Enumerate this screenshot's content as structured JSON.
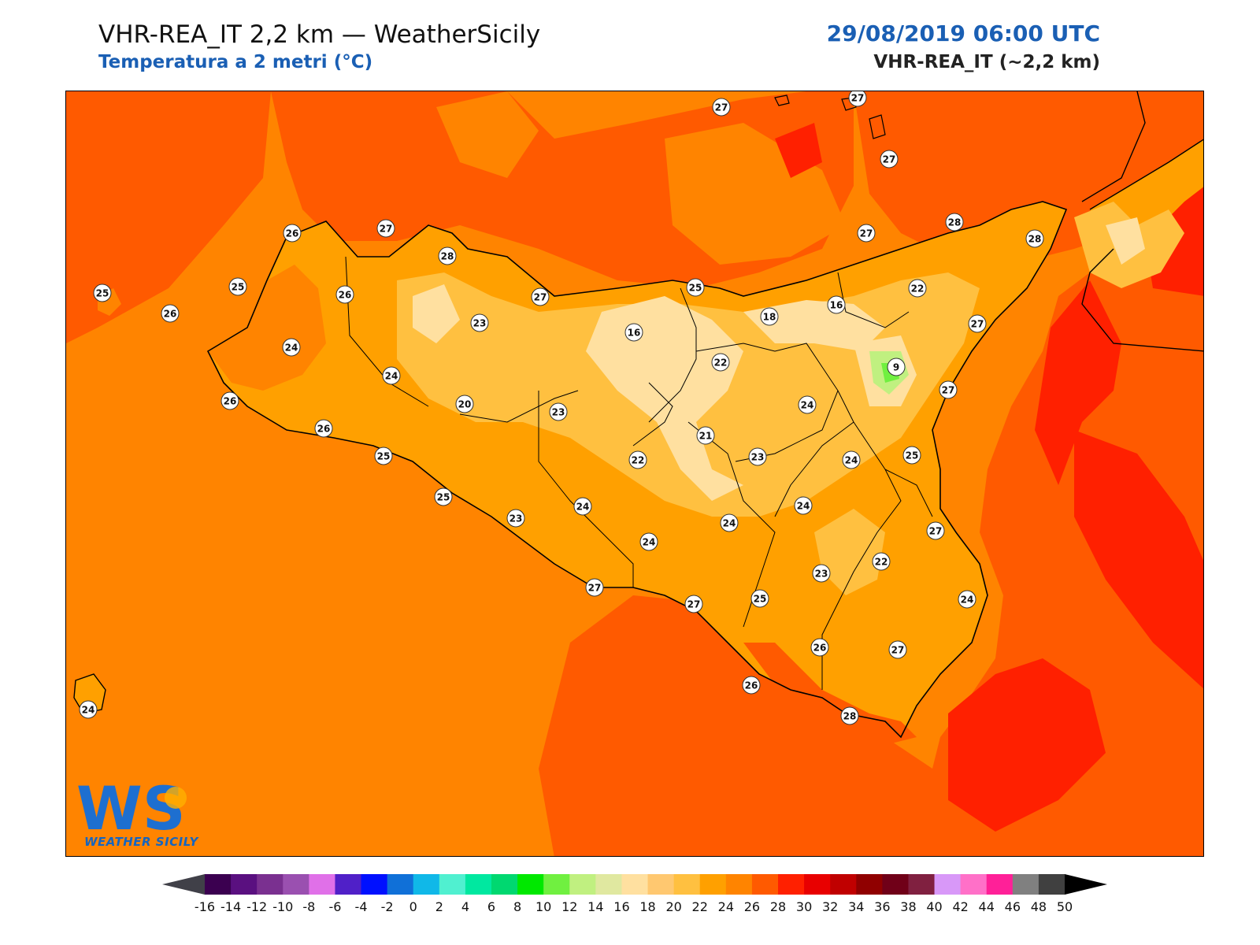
{
  "header": {
    "title": "VHR-REA_IT 2,2 km — WeatherSicily",
    "subtitle": "Temperatura a 2 metri (°C)",
    "datetime": "29/08/2019 06:00 UTC",
    "model": "VHR-REA_IT (~2,2 km)"
  },
  "logo": {
    "text": "WEATHER SICILY",
    "mark": "WS"
  },
  "stations": [
    {
      "label": "27"
    },
    {
      "label": "27"
    },
    {
      "label": "27"
    },
    {
      "label": "26"
    },
    {
      "label": "27"
    },
    {
      "label": "28"
    },
    {
      "label": "28"
    },
    {
      "label": "27"
    },
    {
      "label": "28"
    },
    {
      "label": "25"
    },
    {
      "label": "25"
    },
    {
      "label": "26"
    },
    {
      "label": "26"
    },
    {
      "label": "23"
    },
    {
      "label": "27"
    },
    {
      "label": "25"
    },
    {
      "label": "22"
    },
    {
      "label": "16"
    },
    {
      "label": "18"
    },
    {
      "label": "16"
    },
    {
      "label": "27"
    },
    {
      "label": "24"
    },
    {
      "label": "24"
    },
    {
      "label": "22"
    },
    {
      "label": "9"
    },
    {
      "label": "26"
    },
    {
      "label": "20"
    },
    {
      "label": "23"
    },
    {
      "label": "27"
    },
    {
      "label": "24"
    },
    {
      "label": "26"
    },
    {
      "label": "21"
    },
    {
      "label": "25"
    },
    {
      "label": "22"
    },
    {
      "label": "23"
    },
    {
      "label": "24"
    },
    {
      "label": "25"
    },
    {
      "label": "25"
    },
    {
      "label": "23"
    },
    {
      "label": "24"
    },
    {
      "label": "24"
    },
    {
      "label": "24"
    },
    {
      "label": "24"
    },
    {
      "label": "23"
    },
    {
      "label": "22"
    },
    {
      "label": "27"
    },
    {
      "label": "27"
    },
    {
      "label": "25"
    },
    {
      "label": "27"
    },
    {
      "label": "24"
    },
    {
      "label": "26"
    },
    {
      "label": "24"
    },
    {
      "label": "26"
    },
    {
      "label": "27"
    },
    {
      "label": "28"
    }
  ],
  "colorbar": {
    "unit": "°C",
    "ticks": [
      "-16",
      "-14",
      "-12",
      "-10",
      "-8",
      "-6",
      "-4",
      "-2",
      "0",
      "2",
      "4",
      "6",
      "8",
      "10",
      "12",
      "14",
      "16",
      "18",
      "20",
      "22",
      "24",
      "26",
      "28",
      "30",
      "32",
      "34",
      "36",
      "38",
      "40",
      "42",
      "44",
      "46",
      "48",
      "50"
    ],
    "colors": [
      "#3b0050",
      "#5a1080",
      "#7a3090",
      "#9a50b0",
      "#e070e8",
      "#5020c8",
      "#0010ff",
      "#1070d8",
      "#10b8e8",
      "#50f0d0",
      "#00e8a0",
      "#00d870",
      "#00e800",
      "#70f040",
      "#c0f080",
      "#e0e8a0",
      "#ffe0a0",
      "#ffc870",
      "#ffc040",
      "#ffa000",
      "#ff8400",
      "#ff5a00",
      "#ff2000",
      "#e80000",
      "#c00000",
      "#900000",
      "#700018",
      "#802040",
      "#d898f8",
      "#ff70c8",
      "#ff2098",
      "#808080",
      "#404040"
    ],
    "under_color": "#404048",
    "over_color": "#000000"
  },
  "legend_colors": {
    "sea_base": "#ff8400",
    "warm": "#ff5a00",
    "hot": "#ff2000",
    "mild": "#ffa000",
    "cool": "#ffc040",
    "cooler": "#ffe0a0",
    "cold": "#70f040",
    "coast": "#000000"
  }
}
